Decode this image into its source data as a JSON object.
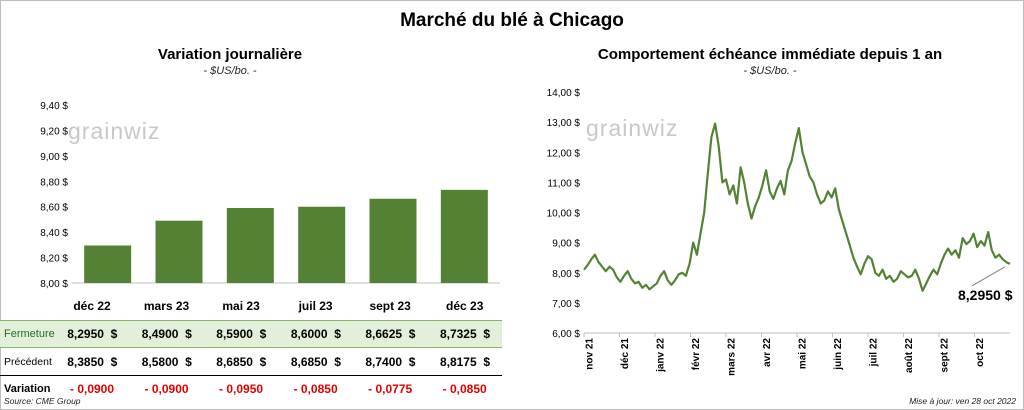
{
  "title": "Marché du blé à Chicago",
  "watermark": "grainwiz",
  "footer": {
    "source": "Source: CME Group",
    "updated": "Mise à jour: ven 28 oct 2022"
  },
  "daily": {
    "title": "Variation  journalière",
    "unit": "- $US/bo. -",
    "rows": {
      "fermeture": "Fermeture",
      "precedent": "Précédent",
      "variation": "Variation"
    },
    "columns": [
      {
        "month": "déc 22",
        "close": "8,2950",
        "prev": "8,3850",
        "change": "- 0,0900"
      },
      {
        "month": "mars 23",
        "close": "8,4900",
        "prev": "8,5800",
        "change": "- 0,0900"
      },
      {
        "month": "mai 23",
        "close": "8,5900",
        "prev": "8,6850",
        "change": "- 0,0950"
      },
      {
        "month": "juil 23",
        "close": "8,6000",
        "prev": "8,6850",
        "change": "- 0,0850"
      },
      {
        "month": "sept 23",
        "close": "8,6625",
        "prev": "8,7400",
        "change": "- 0,0775"
      },
      {
        "month": "déc 23",
        "close": "8,7325",
        "prev": "8,8175",
        "change": "- 0,0850"
      }
    ],
    "currency": "$"
  },
  "history": {
    "title": "Comportement  échéance immédiate depuis 1 an",
    "unit": "- $US/bo. -",
    "last_label": "8,2950 $"
  },
  "chart_data": [
    {
      "type": "bar",
      "categories": [
        "déc 22",
        "mars 23",
        "mai 23",
        "juil 23",
        "sept 23",
        "déc 23"
      ],
      "values": [
        8.295,
        8.49,
        8.59,
        8.6,
        8.6625,
        8.7325
      ],
      "ylim": [
        8.0,
        9.4
      ],
      "yticks": [
        "8,00 $",
        "8,20 $",
        "8,40 $",
        "8,60 $",
        "8,80 $",
        "9,00 $",
        "9,20 $",
        "9,40 $"
      ],
      "color": "#548235",
      "grid": false
    },
    {
      "type": "line",
      "ylim": [
        6.0,
        14.0
      ],
      "yticks": [
        "6,00 $",
        "7,00 $",
        "8,00 $",
        "9,00 $",
        "10,00 $",
        "11,00 $",
        "12,00 $",
        "13,00 $",
        "14,00 $"
      ],
      "xticks": [
        "nov 21",
        "déc 21",
        "janv 22",
        "févr 22",
        "mars 22",
        "avr 22",
        "mai 22",
        "juin 22",
        "juil 22",
        "août 22",
        "sept 22",
        "oct 22"
      ],
      "color": "#548235",
      "grid": false,
      "values": [
        8.1,
        8.25,
        8.45,
        8.6,
        8.35,
        8.2,
        8.05,
        8.2,
        8.1,
        7.85,
        7.7,
        7.9,
        8.05,
        7.8,
        7.65,
        7.7,
        7.5,
        7.6,
        7.45,
        7.55,
        7.65,
        7.9,
        8.05,
        7.75,
        7.6,
        7.75,
        7.95,
        8.0,
        7.9,
        8.3,
        9.0,
        8.6,
        9.3,
        10.0,
        11.3,
        12.5,
        12.95,
        12.2,
        11.0,
        11.1,
        10.6,
        10.9,
        10.3,
        11.5,
        11.0,
        10.3,
        9.8,
        10.2,
        10.5,
        10.9,
        11.4,
        10.7,
        10.45,
        10.8,
        11.05,
        10.6,
        11.4,
        11.7,
        12.3,
        12.8,
        12.0,
        11.6,
        11.2,
        11.0,
        10.6,
        10.3,
        10.4,
        10.7,
        10.5,
        10.8,
        10.1,
        9.7,
        9.3,
        8.9,
        8.5,
        8.2,
        7.95,
        8.3,
        8.55,
        8.45,
        8.0,
        7.9,
        8.1,
        7.8,
        7.9,
        7.7,
        7.8,
        8.05,
        7.95,
        7.85,
        7.9,
        8.1,
        7.8,
        7.4,
        7.65,
        7.9,
        8.1,
        7.95,
        8.3,
        8.6,
        8.8,
        8.6,
        8.75,
        8.5,
        9.15,
        8.95,
        9.05,
        9.3,
        8.85,
        9.05,
        8.9,
        9.35,
        8.75,
        8.5,
        8.6,
        8.45,
        8.35,
        8.295
      ]
    }
  ]
}
